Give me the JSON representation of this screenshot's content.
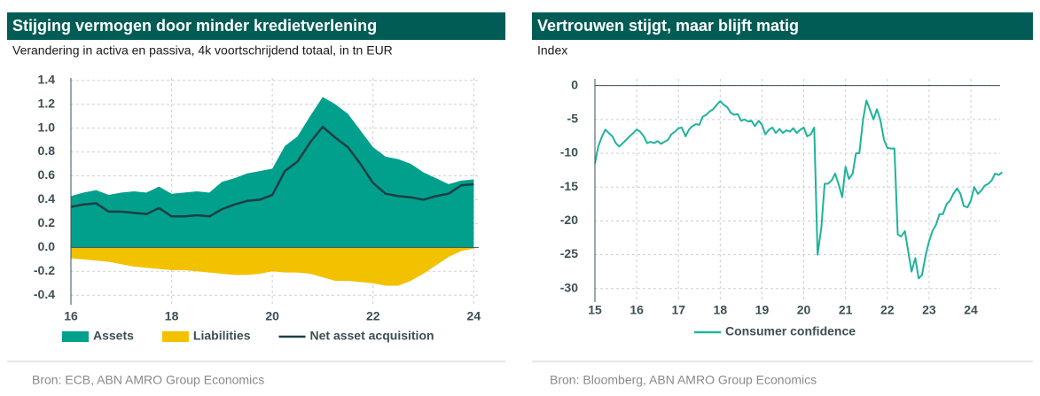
{
  "chart_data": [
    {
      "type": "area",
      "title": "Stijging vermogen door minder kredietverlening",
      "subtitle": "Verandering in activa en passiva, 4k voortschrijdend totaal, in tn EUR",
      "source": "Bron: ECB, ABN AMRO Group Economics",
      "x": [
        16,
        16.25,
        16.5,
        16.75,
        17,
        17.25,
        17.5,
        17.75,
        18,
        18.25,
        18.5,
        18.75,
        19,
        19.25,
        19.5,
        19.75,
        20,
        20.25,
        20.5,
        20.75,
        21,
        21.25,
        21.5,
        21.75,
        22,
        22.25,
        22.5,
        22.75,
        23,
        23.25,
        23.5,
        23.75,
        24
      ],
      "series": [
        {
          "name": "Assets",
          "color": "#00a08c",
          "style": "area",
          "values": [
            0.43,
            0.46,
            0.48,
            0.44,
            0.46,
            0.47,
            0.46,
            0.51,
            0.45,
            0.46,
            0.47,
            0.46,
            0.55,
            0.58,
            0.62,
            0.64,
            0.66,
            0.85,
            0.93,
            1.1,
            1.26,
            1.2,
            1.12,
            0.98,
            0.84,
            0.76,
            0.74,
            0.7,
            0.63,
            0.58,
            0.53,
            0.56,
            0.57
          ]
        },
        {
          "name": "Liabilities",
          "color": "#f2c100",
          "style": "area",
          "values": [
            -0.09,
            -0.1,
            -0.11,
            -0.12,
            -0.14,
            -0.16,
            -0.17,
            -0.18,
            -0.19,
            -0.19,
            -0.2,
            -0.21,
            -0.22,
            -0.23,
            -0.23,
            -0.22,
            -0.2,
            -0.21,
            -0.21,
            -0.22,
            -0.25,
            -0.28,
            -0.28,
            -0.29,
            -0.3,
            -0.32,
            -0.32,
            -0.28,
            -0.22,
            -0.15,
            -0.08,
            -0.03,
            -0.01
          ]
        },
        {
          "name": "Net asset acquisition",
          "color": "#1e3d45",
          "style": "line",
          "values": [
            0.34,
            0.36,
            0.37,
            0.3,
            0.3,
            0.29,
            0.28,
            0.33,
            0.26,
            0.26,
            0.27,
            0.26,
            0.32,
            0.36,
            0.39,
            0.4,
            0.44,
            0.64,
            0.72,
            0.88,
            1.01,
            0.92,
            0.84,
            0.7,
            0.54,
            0.45,
            0.43,
            0.42,
            0.4,
            0.43,
            0.45,
            0.52,
            0.53
          ]
        }
      ],
      "xlim": [
        16,
        24.1
      ],
      "xticks": [
        16,
        18,
        20,
        22,
        24
      ],
      "ylim": [
        -0.48,
        1.42
      ],
      "yticks": [
        1.4,
        1.2,
        {
          "value": 1,
          "label": "1.0"
        },
        0.8,
        0.6,
        0.4,
        0.2,
        {
          "value": 0,
          "label": "0.0"
        },
        -0.2,
        -0.4
      ],
      "grid": true
    },
    {
      "type": "line",
      "title": "Vertrouwen stijgt, maar blijft matig",
      "subtitle": "Index",
      "source": "Bron: Bloomberg, ABN AMRO Group Economics",
      "x": [
        15,
        15.08,
        15.17,
        15.25,
        15.33,
        15.42,
        15.5,
        15.58,
        15.67,
        15.75,
        15.83,
        15.92,
        16,
        16.08,
        16.17,
        16.25,
        16.33,
        16.42,
        16.5,
        16.58,
        16.67,
        16.75,
        16.83,
        16.92,
        17,
        17.08,
        17.17,
        17.25,
        17.33,
        17.42,
        17.5,
        17.58,
        17.67,
        17.75,
        17.83,
        17.92,
        18,
        18.08,
        18.17,
        18.25,
        18.33,
        18.42,
        18.5,
        18.58,
        18.67,
        18.75,
        18.83,
        18.92,
        19,
        19.08,
        19.17,
        19.25,
        19.33,
        19.42,
        19.5,
        19.58,
        19.67,
        19.75,
        19.83,
        19.92,
        20,
        20.08,
        20.17,
        20.25,
        20.33,
        20.42,
        20.5,
        20.58,
        20.67,
        20.75,
        20.83,
        20.92,
        21,
        21.08,
        21.17,
        21.25,
        21.33,
        21.42,
        21.5,
        21.58,
        21.67,
        21.75,
        21.83,
        21.92,
        22,
        22.08,
        22.17,
        22.25,
        22.33,
        22.42,
        22.5,
        22.58,
        22.67,
        22.75,
        22.83,
        22.92,
        23,
        23.08,
        23.17,
        23.25,
        23.33,
        23.42,
        23.5,
        23.58,
        23.67,
        23.75,
        23.83,
        23.92,
        24,
        24.08,
        24.17,
        24.25,
        24.33,
        24.42,
        24.5,
        24.58,
        24.67,
        24.75
      ],
      "series": [
        {
          "name": "Consumer confidence",
          "color": "#1fb39b",
          "values": [
            -11.5,
            -9,
            -7.5,
            -6.5,
            -7,
            -7.5,
            -8.5,
            -9,
            -8.5,
            -8,
            -7.5,
            -7,
            -6.5,
            -6.8,
            -7.5,
            -8.5,
            -8.3,
            -8.5,
            -8.2,
            -8.6,
            -8.3,
            -8,
            -7.2,
            -6.8,
            -6.3,
            -6.2,
            -7.5,
            -6.5,
            -6,
            -5.7,
            -5.8,
            -4.6,
            -4.3,
            -3.8,
            -3.5,
            -2.8,
            -2.3,
            -2.8,
            -3.2,
            -4,
            -4.3,
            -4.2,
            -5.2,
            -5,
            -5.3,
            -5.2,
            -6,
            -5.2,
            -5.8,
            -7.2,
            -6.5,
            -6.2,
            -7,
            -6.4,
            -7,
            -6.6,
            -6.8,
            -6.3,
            -7,
            -6.5,
            -6.2,
            -7.5,
            -7.2,
            -6.2,
            -25,
            -21,
            -14.5,
            -14.5,
            -14,
            -13,
            -14.5,
            -16.5,
            -12,
            -13.8,
            -13,
            -10,
            -10,
            -5,
            -2.2,
            -3.5,
            -5,
            -3.5,
            -5,
            -8,
            -9.2,
            -9.3,
            -9.3,
            -22,
            -22.3,
            -21.5,
            -24.5,
            -27.5,
            -25.5,
            -28.5,
            -28,
            -25,
            -23,
            -21.5,
            -20.5,
            -19,
            -19,
            -17.5,
            -17,
            -16,
            -15.2,
            -16,
            -17.8,
            -18,
            -17,
            -15,
            -16,
            -15.5,
            -14.8,
            -14.5,
            -14,
            -13,
            -13.2,
            -12.8
          ]
        }
      ],
      "xlim": [
        15,
        24.7
      ],
      "xticks": [
        15,
        16,
        17,
        18,
        19,
        20,
        21,
        22,
        23,
        24
      ],
      "ylim": [
        -32,
        1
      ],
      "yticks": [
        0,
        -5,
        -10,
        -15,
        -20,
        -25,
        -30
      ],
      "grid": true
    }
  ]
}
